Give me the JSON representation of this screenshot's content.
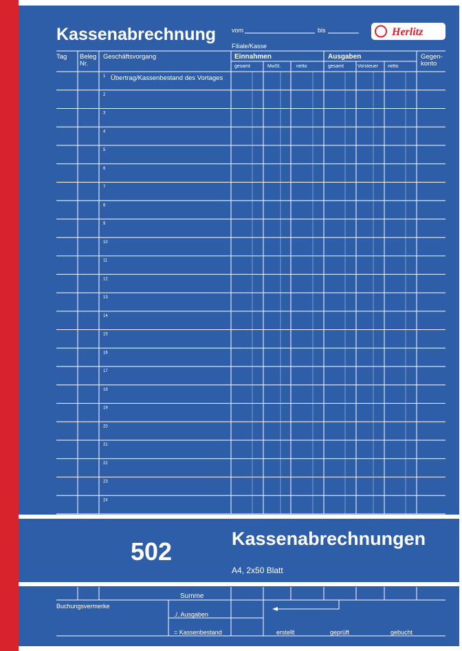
{
  "header": {
    "title": "Kassenabrechnung",
    "from_label": "vom",
    "to_label": "bis",
    "branch_label": "Filiale/Kasse",
    "brand": "Herlitz"
  },
  "table": {
    "columns": {
      "day": "Tag",
      "receipt": [
        "Beleg",
        "Nr."
      ],
      "transaction": "Geschäftsvorgang",
      "income": {
        "title": "Einnahmen",
        "sub": [
          "gesamt",
          "MwSt.",
          "netto"
        ]
      },
      "expenses": {
        "title": "Ausgaben",
        "sub": [
          "gesamt",
          "Vorsteuer",
          "netto"
        ]
      },
      "contra_account": [
        "Gegen-",
        "konto"
      ]
    },
    "row_numbers": [
      1,
      2,
      3,
      4,
      5,
      6,
      7,
      8,
      9,
      10,
      11,
      12,
      13,
      14,
      15,
      16,
      17,
      18,
      19,
      20,
      21,
      22,
      23,
      24
    ],
    "first_row_text": "Übertrag/Kassenbestand des Vortages"
  },
  "band": {
    "number": "502",
    "product": "Kassenabrechnungen",
    "format": "A4, 2x50 Blatt"
  },
  "footer": {
    "sum": "Summe",
    "booking_notes": "Buchungsvermerke",
    "minus_expenses": "./. Ausgaben",
    "balance": "= Kassenbestand",
    "signatures": [
      "erstellt",
      "geprüft",
      "gebucht"
    ]
  }
}
